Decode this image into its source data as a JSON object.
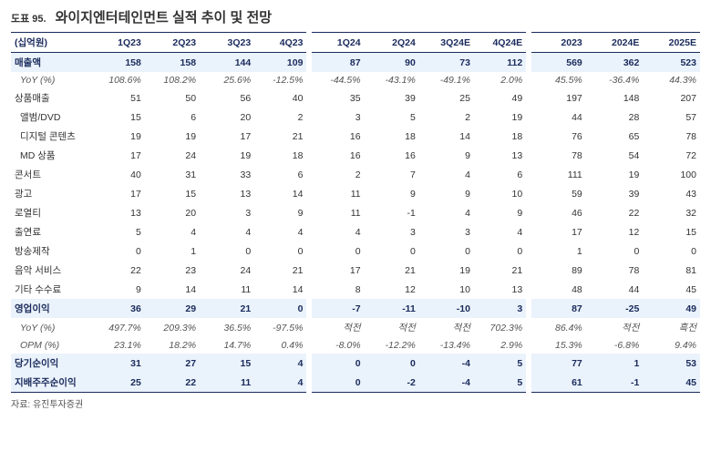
{
  "tableNo": "도표 95.",
  "title": "와이지엔터테인먼트 실적 추이 및 전망",
  "unit": "(십억원)",
  "columns": [
    "1Q23",
    "2Q23",
    "3Q23",
    "4Q23",
    "1Q24",
    "2Q24",
    "3Q24E",
    "4Q24E",
    "2023",
    "2024E",
    "2025E"
  ],
  "rows": [
    {
      "label": "매출액",
      "style": "hl",
      "v": [
        "158",
        "158",
        "144",
        "109",
        "87",
        "90",
        "73",
        "112",
        "569",
        "362",
        "523"
      ]
    },
    {
      "label": "YoY (%)",
      "style": "italic",
      "v": [
        "108.6%",
        "108.2%",
        "25.6%",
        "-12.5%",
        "-44.5%",
        "-43.1%",
        "-49.1%",
        "2.0%",
        "45.5%",
        "-36.4%",
        "44.3%"
      ]
    },
    {
      "label": "상품매출",
      "style": "",
      "v": [
        "51",
        "50",
        "56",
        "40",
        "35",
        "39",
        "25",
        "49",
        "197",
        "148",
        "207"
      ]
    },
    {
      "label": "앨범/DVD",
      "style": "sub",
      "v": [
        "15",
        "6",
        "20",
        "2",
        "3",
        "5",
        "2",
        "19",
        "44",
        "28",
        "57"
      ]
    },
    {
      "label": "디지털 콘텐츠",
      "style": "sub",
      "v": [
        "19",
        "19",
        "17",
        "21",
        "16",
        "18",
        "14",
        "18",
        "76",
        "65",
        "78"
      ]
    },
    {
      "label": "MD 상품",
      "style": "sub",
      "v": [
        "17",
        "24",
        "19",
        "18",
        "16",
        "16",
        "9",
        "13",
        "78",
        "54",
        "72"
      ]
    },
    {
      "label": "콘서트",
      "style": "",
      "v": [
        "40",
        "31",
        "33",
        "6",
        "2",
        "7",
        "4",
        "6",
        "111",
        "19",
        "100"
      ]
    },
    {
      "label": "광고",
      "style": "",
      "v": [
        "17",
        "15",
        "13",
        "14",
        "11",
        "9",
        "9",
        "10",
        "59",
        "39",
        "43"
      ]
    },
    {
      "label": "로열티",
      "style": "",
      "v": [
        "13",
        "20",
        "3",
        "9",
        "11",
        "-1",
        "4",
        "9",
        "46",
        "22",
        "32"
      ]
    },
    {
      "label": "출연료",
      "style": "",
      "v": [
        "5",
        "4",
        "4",
        "4",
        "4",
        "3",
        "3",
        "4",
        "17",
        "12",
        "15"
      ]
    },
    {
      "label": "방송제작",
      "style": "",
      "v": [
        "0",
        "1",
        "0",
        "0",
        "0",
        "0",
        "0",
        "0",
        "1",
        "0",
        "0"
      ]
    },
    {
      "label": "음악 서비스",
      "style": "",
      "v": [
        "22",
        "23",
        "24",
        "21",
        "17",
        "21",
        "19",
        "21",
        "89",
        "78",
        "81"
      ]
    },
    {
      "label": "기타 수수료",
      "style": "",
      "v": [
        "9",
        "14",
        "11",
        "14",
        "8",
        "12",
        "10",
        "13",
        "48",
        "44",
        "45"
      ]
    },
    {
      "label": "영업이익",
      "style": "hl",
      "v": [
        "36",
        "29",
        "21",
        "0",
        "-7",
        "-11",
        "-10",
        "3",
        "87",
        "-25",
        "49"
      ]
    },
    {
      "label": "YoY (%)",
      "style": "italic",
      "v": [
        "497.7%",
        "209.3%",
        "36.5%",
        "-97.5%",
        "적전",
        "적전",
        "적전",
        "702.3%",
        "86.4%",
        "적전",
        "흑전"
      ]
    },
    {
      "label": "OPM (%)",
      "style": "italic",
      "v": [
        "23.1%",
        "18.2%",
        "14.7%",
        "0.4%",
        "-8.0%",
        "-12.2%",
        "-13.4%",
        "2.9%",
        "15.3%",
        "-6.8%",
        "9.4%"
      ]
    },
    {
      "label": "당기순이익",
      "style": "hl",
      "v": [
        "31",
        "27",
        "15",
        "4",
        "0",
        "0",
        "-4",
        "5",
        "77",
        "1",
        "53"
      ]
    },
    {
      "label": "지배주주순이익",
      "style": "hl",
      "v": [
        "25",
        "22",
        "11",
        "4",
        "0",
        "-2",
        "-4",
        "5",
        "61",
        "-1",
        "45"
      ]
    }
  ],
  "source": "자료: 유진투자증권",
  "colors": {
    "border": "#1a2b5c",
    "highlightBg": "#eaf2fb",
    "highlightText": "#1a2b5c"
  }
}
